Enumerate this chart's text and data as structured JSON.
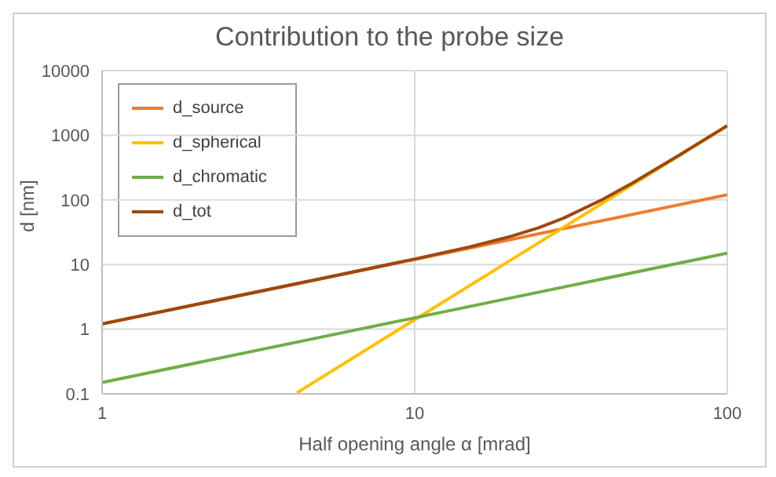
{
  "chart_data": {
    "type": "line",
    "title": "Contribution to the probe size",
    "xlabel": "Half opening angle α [mrad]",
    "ylabel": "d [nm]",
    "log": "xy",
    "xlim": [
      1,
      100
    ],
    "xticks": [
      1,
      10,
      100
    ],
    "ylim": [
      0.1,
      10000
    ],
    "yticks": [
      0.1,
      1,
      10,
      100,
      1000,
      10000
    ],
    "grid": true,
    "legend": "top left",
    "marker": "none",
    "series": [
      {
        "name": "d_source",
        "color": "#ed7d31",
        "x": [
          1,
          10,
          100
        ],
        "values": [
          1.2,
          12,
          120
        ]
      },
      {
        "name": "d_spherical",
        "color": "#ffc000",
        "x": [
          4.2,
          10,
          20,
          40,
          100
        ],
        "values": [
          0.104,
          1.4,
          11.2,
          89.6,
          1400
        ]
      },
      {
        "name": "d_chromatic",
        "color": "#70ad47",
        "x": [
          1,
          10,
          100
        ],
        "values": [
          0.15,
          1.5,
          15
        ]
      },
      {
        "name": "d_tot",
        "color": "#9e480e",
        "x": [
          1,
          2,
          5,
          10,
          15,
          20,
          25,
          30,
          40,
          50,
          70,
          100
        ],
        "values": [
          1.21,
          2.42,
          6.05,
          12.2,
          18.8,
          26.7,
          37.3,
          52.4,
          102,
          185,
          488,
          1405
        ]
      }
    ]
  }
}
